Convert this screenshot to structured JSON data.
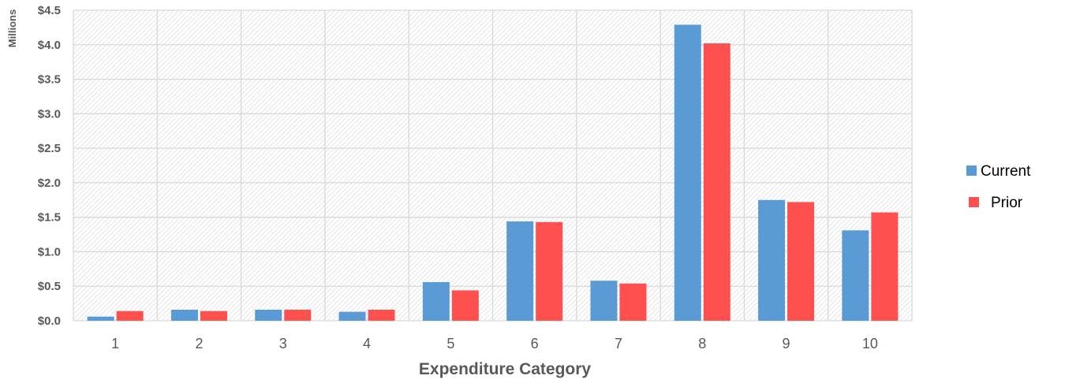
{
  "chart_data": {
    "type": "bar",
    "title": "",
    "xlabel": "Expenditure Category",
    "ylabel": "Millions",
    "categories": [
      "1",
      "2",
      "3",
      "4",
      "5",
      "6",
      "7",
      "8",
      "9",
      "10"
    ],
    "series": [
      {
        "name": "Current",
        "color": "#5B9BD5",
        "values": [
          0.06,
          0.16,
          0.16,
          0.13,
          0.56,
          1.44,
          0.58,
          4.29,
          1.75,
          1.31
        ]
      },
      {
        "name": "Prior",
        "color": "#FF5050",
        "values": [
          0.14,
          0.14,
          0.16,
          0.16,
          0.44,
          1.43,
          0.54,
          4.02,
          1.72,
          1.57
        ]
      }
    ],
    "ylim": [
      0,
      4.5
    ],
    "yticks": [
      0,
      0.5,
      1.0,
      1.5,
      2.0,
      2.5,
      3.0,
      3.5,
      4.0,
      4.5
    ],
    "ytick_labels": [
      "$0.0",
      "$0.5",
      "$1.0",
      "$1.5",
      "$2.0",
      "$2.5",
      "$3.0",
      "$3.5",
      "$4.0",
      "$4.5"
    ],
    "grid": true,
    "legend_position": "right",
    "plot_background": "diagonal-hatch",
    "grid_color": "#D9D9D9"
  }
}
